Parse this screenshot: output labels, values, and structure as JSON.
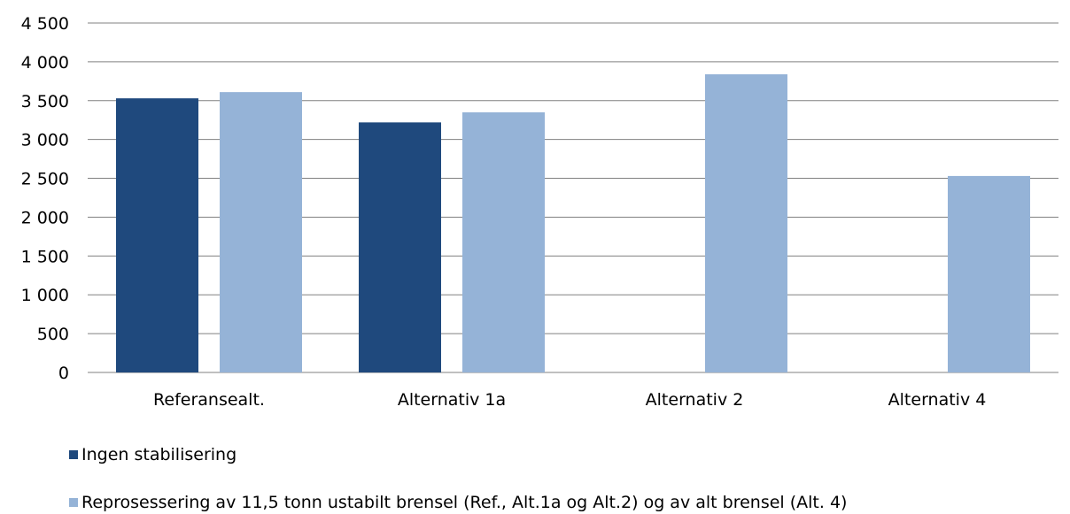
{
  "chart_data": {
    "type": "bar",
    "categories": [
      "Referansealt.",
      "Alternativ 1a",
      "Alternativ 2",
      "Alternativ 4"
    ],
    "series": [
      {
        "name": "Ingen stabilisering",
        "values": [
          3530,
          3220,
          null,
          null
        ],
        "color": "#1f497d"
      },
      {
        "name": "Reprosessering av 11,5 tonn ustabilt brensel (Ref., Alt.1a og Alt.2) og av alt brensel (Alt. 4)",
        "values": [
          3610,
          3350,
          3840,
          2530
        ],
        "color": "#95b3d7"
      }
    ],
    "yticks": [
      "0",
      "500",
      "1 000",
      "1 500",
      "2 000",
      "2 500",
      "3 000",
      "3 500",
      "4 000",
      "4 500"
    ],
    "ylim": [
      0,
      4500
    ],
    "grid": true,
    "legend_position": "bottom"
  }
}
